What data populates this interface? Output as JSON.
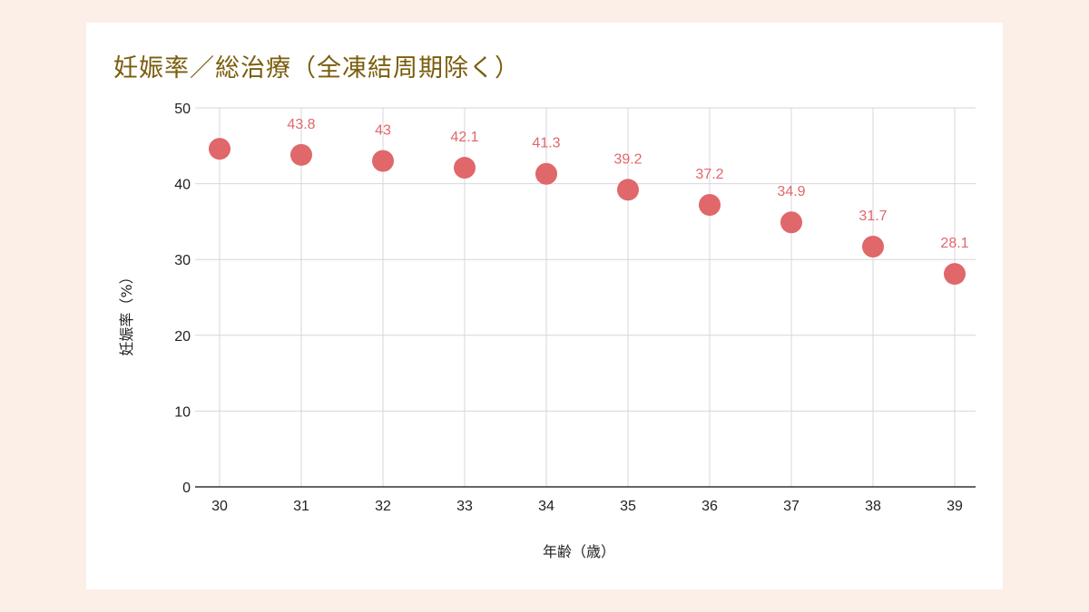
{
  "chart_data": {
    "type": "scatter",
    "title": "妊娠率／総治療（全凍結周期除く）",
    "xlabel": "年齢（歳）",
    "ylabel": "妊娠率（%）",
    "x": [
      30,
      31,
      32,
      33,
      34,
      35,
      36,
      37,
      38,
      39
    ],
    "y": [
      44.6,
      43.8,
      43,
      42.1,
      41.3,
      39.2,
      37.2,
      34.9,
      31.7,
      28.1
    ],
    "data_labels": [
      "",
      "43.8",
      "43",
      "42.1",
      "41.3",
      "39.2",
      "37.2",
      "34.9",
      "31.7",
      "28.1"
    ],
    "ylim": [
      0,
      50
    ],
    "yticks": [
      0,
      10,
      20,
      30,
      40,
      50
    ],
    "grid": true,
    "colors": {
      "marker": "#e0676a",
      "title": "#7a5d0c",
      "grid": "#d9d4dc"
    }
  }
}
